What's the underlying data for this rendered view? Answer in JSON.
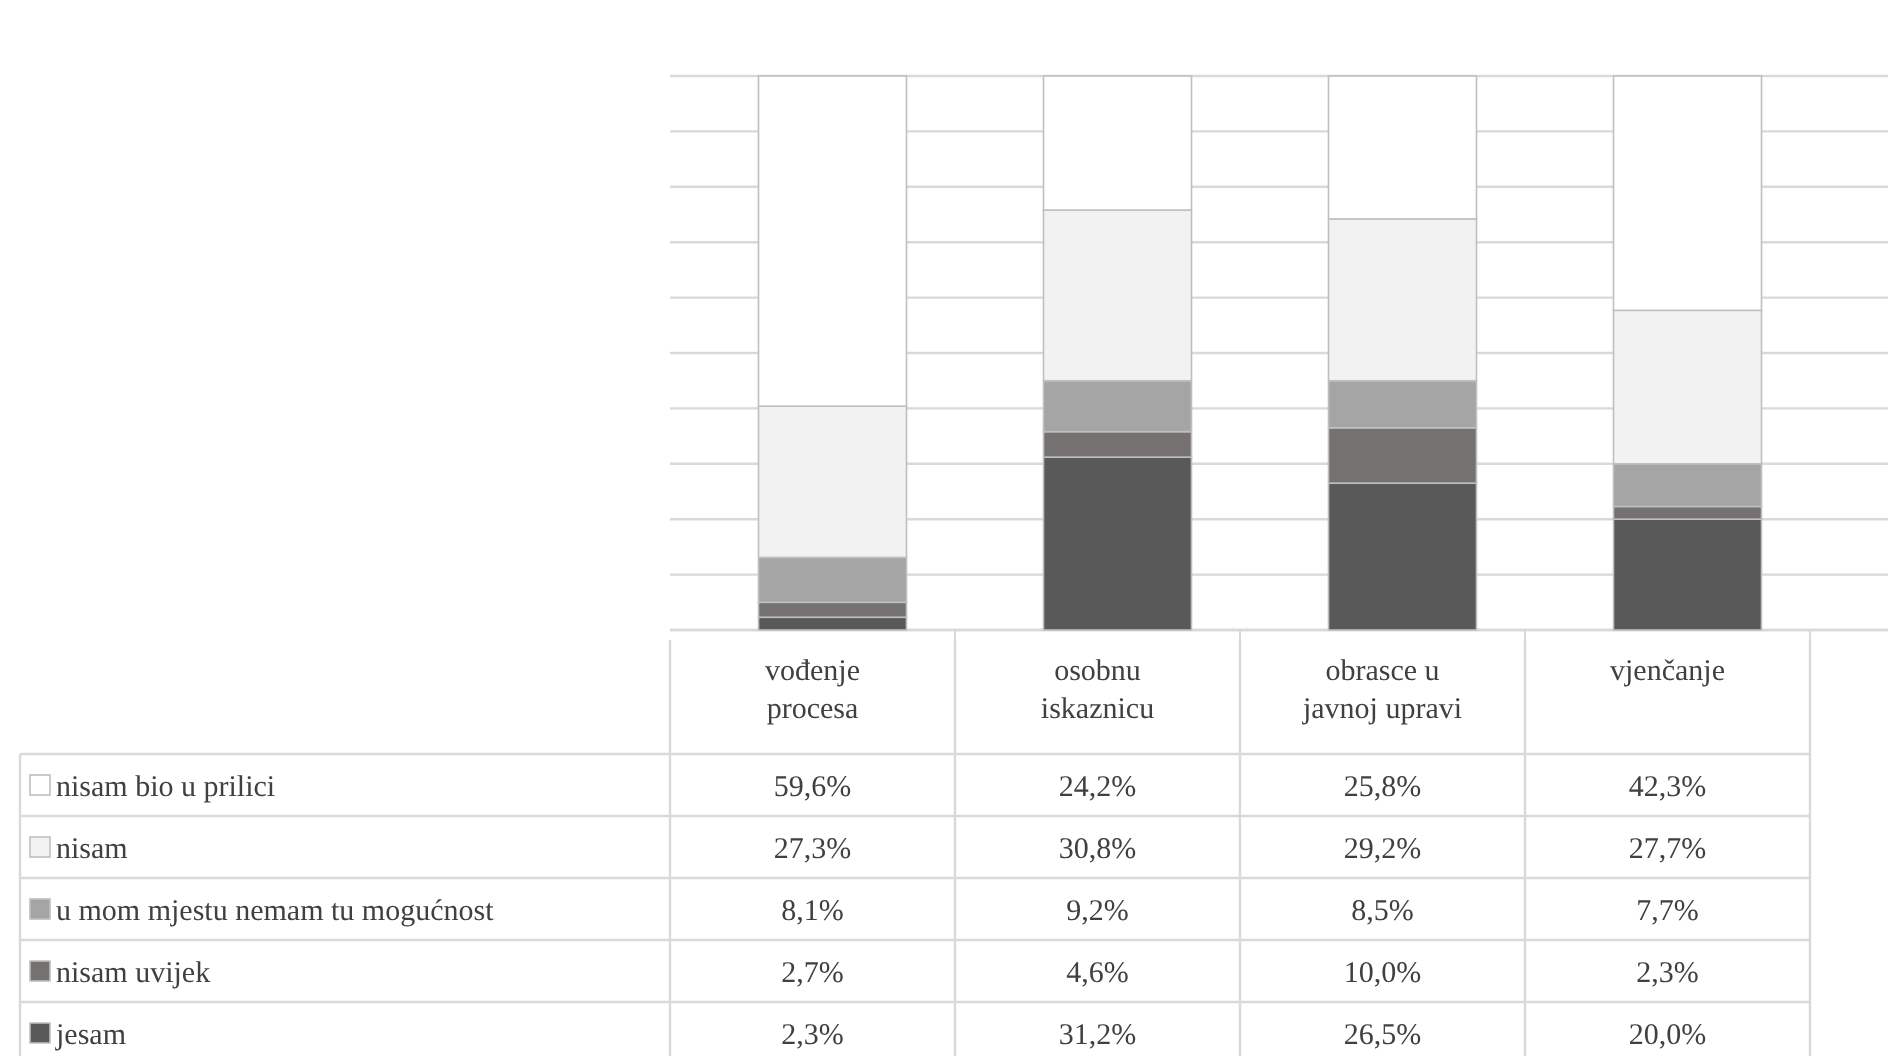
{
  "chart_data": {
    "type": "bar",
    "stacked": true,
    "categories": [
      "vođenje procesa",
      "osobnu iskaznicu",
      "obrasce u javnoj upravi",
      "vjenčanje"
    ],
    "series": [
      {
        "name": "jesam",
        "color": "#595959",
        "values": [
          2.3,
          31.2,
          26.5,
          20.0
        ],
        "value_labels": [
          "2,3%",
          "31,2%",
          "26,5%",
          "20,0%"
        ]
      },
      {
        "name": "nisam uvijek",
        "color": "#767171",
        "values": [
          2.7,
          4.6,
          10.0,
          2.3
        ],
        "value_labels": [
          "2,7%",
          "4,6%",
          "10,0%",
          "2,3%"
        ]
      },
      {
        "name": "u mom mjestu nemam tu mogućnost",
        "color": "#a5a5a5",
        "values": [
          8.1,
          9.2,
          8.5,
          7.7
        ],
        "value_labels": [
          "8,1%",
          "9,2%",
          "8,5%",
          "7,7%"
        ]
      },
      {
        "name": "nisam",
        "color": "#f2f2f2",
        "values": [
          27.3,
          30.8,
          29.2,
          27.7
        ],
        "value_labels": [
          "27,3%",
          "30,8%",
          "29,2%",
          "27,7%"
        ]
      },
      {
        "name": "nisam bio u prilici",
        "color": "#ffffff",
        "values": [
          59.6,
          24.2,
          25.8,
          42.3
        ],
        "value_labels": [
          "59,6%",
          "24,2%",
          "25,8%",
          "42,3%"
        ]
      }
    ],
    "ylim": [
      0,
      100
    ],
    "yticks": [
      {
        "value": 0,
        "label": null
      },
      {
        "value": 10,
        "label": null
      },
      {
        "value": 20,
        "label": null
      },
      {
        "value": 30,
        "label": null
      },
      {
        "value": 40,
        "label": null
      },
      {
        "value": 50,
        "label": null
      },
      {
        "value": 60,
        "label": null
      },
      {
        "value": 70,
        "label": null
      },
      {
        "value": 80,
        "label": null
      },
      {
        "value": 90,
        "label": null
      },
      {
        "value": 100,
        "label": null
      }
    ],
    "grid": "y",
    "tick_labels": "x",
    "legend": "bottom left"
  }
}
